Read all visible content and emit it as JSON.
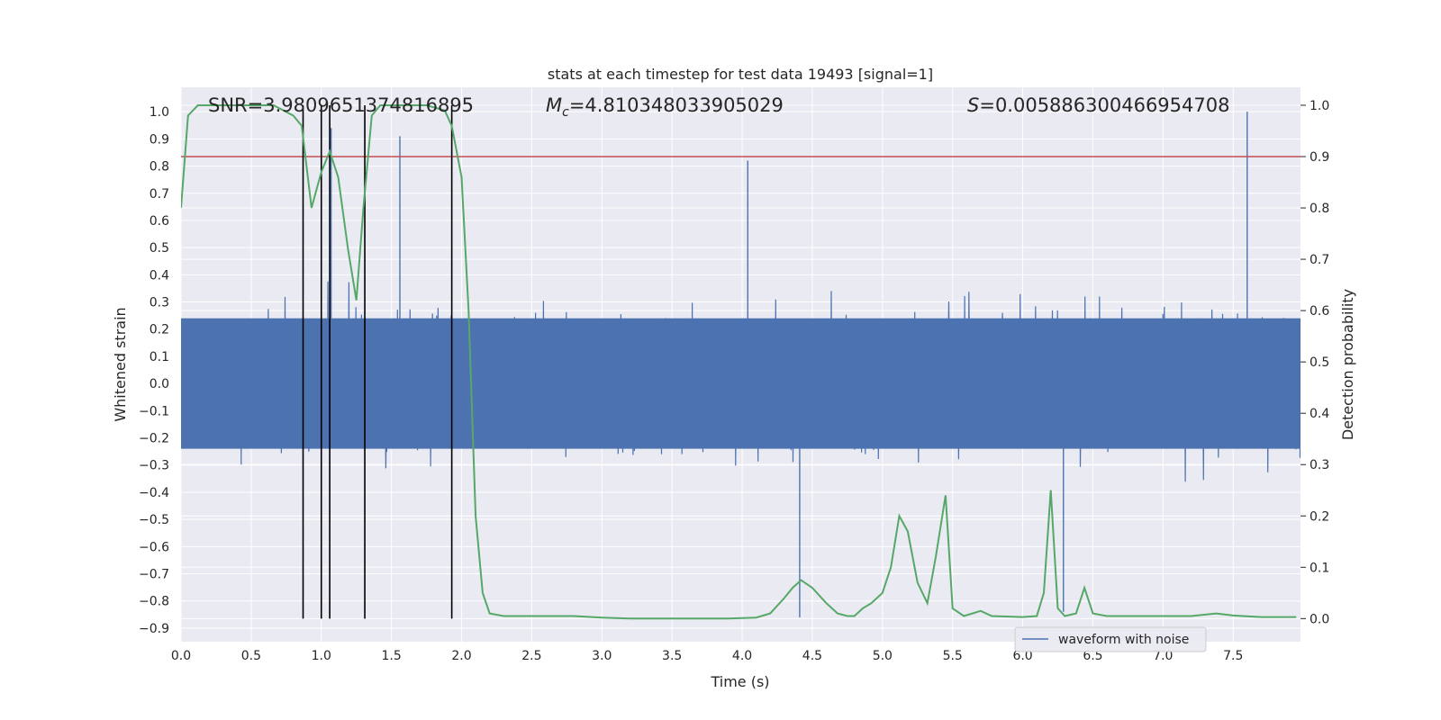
{
  "chart_data": {
    "type": "line",
    "title": "stats at each timestep for test data 19493 [signal=1]",
    "xlabel": "Time (s)",
    "ylabel_left": "Whitened strain",
    "ylabel_right": "Detection probability",
    "xlim": [
      0.0,
      7.98
    ],
    "ylim_left": [
      -0.95,
      1.09
    ],
    "ylim_right": [
      -0.045,
      1.035
    ],
    "xticks": [
      "0.0",
      "0.5",
      "1.0",
      "1.5",
      "2.0",
      "2.5",
      "3.0",
      "3.5",
      "4.0",
      "4.5",
      "5.0",
      "5.5",
      "6.0",
      "6.5",
      "7.0",
      "7.5"
    ],
    "yticks_left": [
      "-0.9",
      "-0.8",
      "-0.7",
      "-0.6",
      "-0.5",
      "-0.4",
      "-0.3",
      "-0.2",
      "-0.1",
      "0.0",
      "0.1",
      "0.2",
      "0.3",
      "0.4",
      "0.5",
      "0.6",
      "0.7",
      "0.8",
      "0.9",
      "1.0"
    ],
    "yticks_right": [
      "0.0",
      "0.1",
      "0.2",
      "0.3",
      "0.4",
      "0.5",
      "0.6",
      "0.7",
      "0.8",
      "0.9",
      "1.0"
    ],
    "grid": true,
    "legend": {
      "placement": "bottom-right",
      "entries": [
        "waveform with noise"
      ]
    },
    "annotations": {
      "snr": "SNR=3.9809651374816895",
      "mc_symbol": "M",
      "mc_sub": "c",
      "mc_value": "=4.810348033905029",
      "s_symbol": "S",
      "s_value": "=0.005886300466954708"
    },
    "colors": {
      "waveform": "#4c72b0",
      "probability": "#55a868",
      "threshold": "#c44e52",
      "markers": "#000000",
      "axes_bg": "#eaeaf2",
      "grid": "#ffffff"
    },
    "waveform": {
      "name": "waveform with noise",
      "peaks": [
        [
          1.56,
          0.91
        ],
        [
          4.04,
          0.82
        ],
        [
          7.6,
          1.0
        ],
        [
          4.41,
          -0.86
        ],
        [
          1.07,
          0.94
        ],
        [
          6.29,
          -0.84
        ]
      ]
    },
    "threshold": 0.9,
    "vertical_markers": [
      0.87,
      1.0,
      1.06,
      1.31,
      1.93
    ],
    "detection_probability": {
      "x": [
        0.0,
        0.05,
        0.12,
        0.2,
        0.35,
        0.5,
        0.66,
        0.8,
        0.86,
        0.93,
        1.0,
        1.06,
        1.12,
        1.19,
        1.25,
        1.3,
        1.36,
        1.42,
        1.5,
        1.6,
        1.75,
        1.88,
        1.93,
        2.0,
        2.05,
        2.1,
        2.15,
        2.2,
        2.3,
        2.4,
        2.6,
        2.8,
        3.0,
        3.2,
        3.6,
        3.9,
        4.0,
        4.1,
        4.2,
        4.3,
        4.36,
        4.42,
        4.5,
        4.6,
        4.68,
        4.75,
        4.8,
        4.86,
        4.92,
        5.0,
        5.06,
        5.12,
        5.18,
        5.25,
        5.32,
        5.38,
        5.45,
        5.5,
        5.58,
        5.7,
        5.78,
        6.0,
        6.1,
        6.15,
        6.2,
        6.25,
        6.3,
        6.38,
        6.44,
        6.5,
        6.6,
        6.8,
        7.0,
        7.2,
        7.38,
        7.5,
        7.7,
        7.95
      ],
      "y": [
        0.8,
        0.98,
        1.0,
        1.0,
        1.0,
        1.0,
        1.0,
        0.98,
        0.96,
        0.8,
        0.87,
        0.91,
        0.86,
        0.72,
        0.62,
        0.8,
        0.98,
        1.0,
        1.0,
        1.0,
        1.0,
        0.99,
        0.96,
        0.86,
        0.6,
        0.2,
        0.05,
        0.01,
        0.005,
        0.005,
        0.005,
        0.005,
        0.002,
        0.0,
        0.0,
        0.0,
        0.001,
        0.002,
        0.01,
        0.04,
        0.06,
        0.075,
        0.06,
        0.03,
        0.01,
        0.005,
        0.005,
        0.02,
        0.03,
        0.05,
        0.1,
        0.2,
        0.17,
        0.07,
        0.03,
        0.12,
        0.24,
        0.02,
        0.005,
        0.015,
        0.005,
        0.003,
        0.005,
        0.05,
        0.25,
        0.02,
        0.005,
        0.01,
        0.06,
        0.01,
        0.005,
        0.005,
        0.005,
        0.005,
        0.01,
        0.006,
        0.003,
        0.003
      ]
    }
  }
}
